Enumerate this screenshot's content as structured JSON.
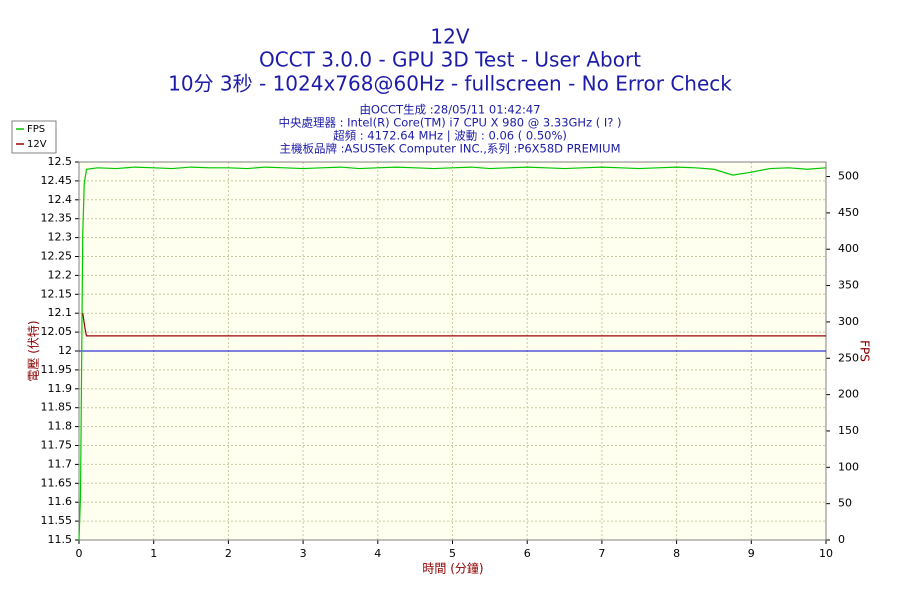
{
  "chart_data": {
    "type": "line",
    "title": "12V",
    "subtitle": "OCCT 3.0.0 - GPU 3D Test - User Abort",
    "subtitle2": "10分 3秒 - 1024x768@60Hz - fullscreen - No Error Check",
    "info": [
      "由OCCT生成 :28/05/11 01:42:47",
      "中央處理器 : Intel(R) Core(TM) i7 CPU X 980 @ 3.33GHz (  I?  )",
      "超頻 : 4172.64 MHz | 波動 : 0.06 ( 0.50%)",
      "主機板品牌 :ASUSTeK Computer INC.,系列 :P6X58D PREMIUM"
    ],
    "x_label": "時間 (分鐘)",
    "y_label": "電壓 (伏特)",
    "y2_label": "FPS",
    "xlim": [
      0,
      10
    ],
    "xticks": [
      0,
      1,
      2,
      3,
      4,
      5,
      6,
      7,
      8,
      9,
      10
    ],
    "ylim": [
      11.5,
      12.5
    ],
    "yticks": [
      11.5,
      11.55,
      11.6,
      11.65,
      11.7,
      11.75,
      11.8,
      11.85,
      11.9,
      11.95,
      12,
      12.05,
      12.1,
      12.15,
      12.2,
      12.25,
      12.3,
      12.35,
      12.4,
      12.45,
      12.5
    ],
    "y2lim": [
      0,
      520
    ],
    "y2ticks": [
      0,
      50,
      100,
      150,
      200,
      250,
      300,
      350,
      400,
      450,
      500
    ],
    "grid": true,
    "legend": "top-left",
    "reference_line": {
      "value": 12,
      "color": "#0000cc"
    },
    "series": [
      {
        "name": "FPS",
        "color": "#00c800",
        "axis": "y2",
        "x": [
          0,
          0.02,
          0.04,
          0.05,
          0.07,
          0.1,
          0.25,
          0.5,
          0.75,
          1,
          1.25,
          1.5,
          1.75,
          2,
          2.25,
          2.5,
          2.75,
          3,
          3.25,
          3.5,
          3.75,
          4,
          4.25,
          4.5,
          4.75,
          5,
          5.25,
          5.5,
          5.75,
          6,
          6.25,
          6.5,
          6.75,
          7,
          7.25,
          7.5,
          7.75,
          8,
          8.25,
          8.5,
          8.75,
          9,
          9.25,
          9.5,
          9.75,
          10
        ],
        "values": [
          0,
          60,
          300,
          420,
          490,
          510,
          512,
          511,
          513,
          512,
          511,
          513,
          512,
          512,
          511,
          513,
          512,
          511,
          512,
          513,
          511,
          512,
          513,
          512,
          511,
          512,
          513,
          511,
          512,
          513,
          512,
          511,
          512,
          513,
          512,
          511,
          512,
          513,
          512,
          510,
          502,
          506,
          511,
          512,
          510,
          512
        ]
      },
      {
        "name": "12V",
        "color": "#990000",
        "axis": "y",
        "x": [
          0.05,
          0.08,
          0.1,
          10
        ],
        "values": [
          12.1,
          12.06,
          12.04,
          12.04
        ]
      }
    ]
  }
}
